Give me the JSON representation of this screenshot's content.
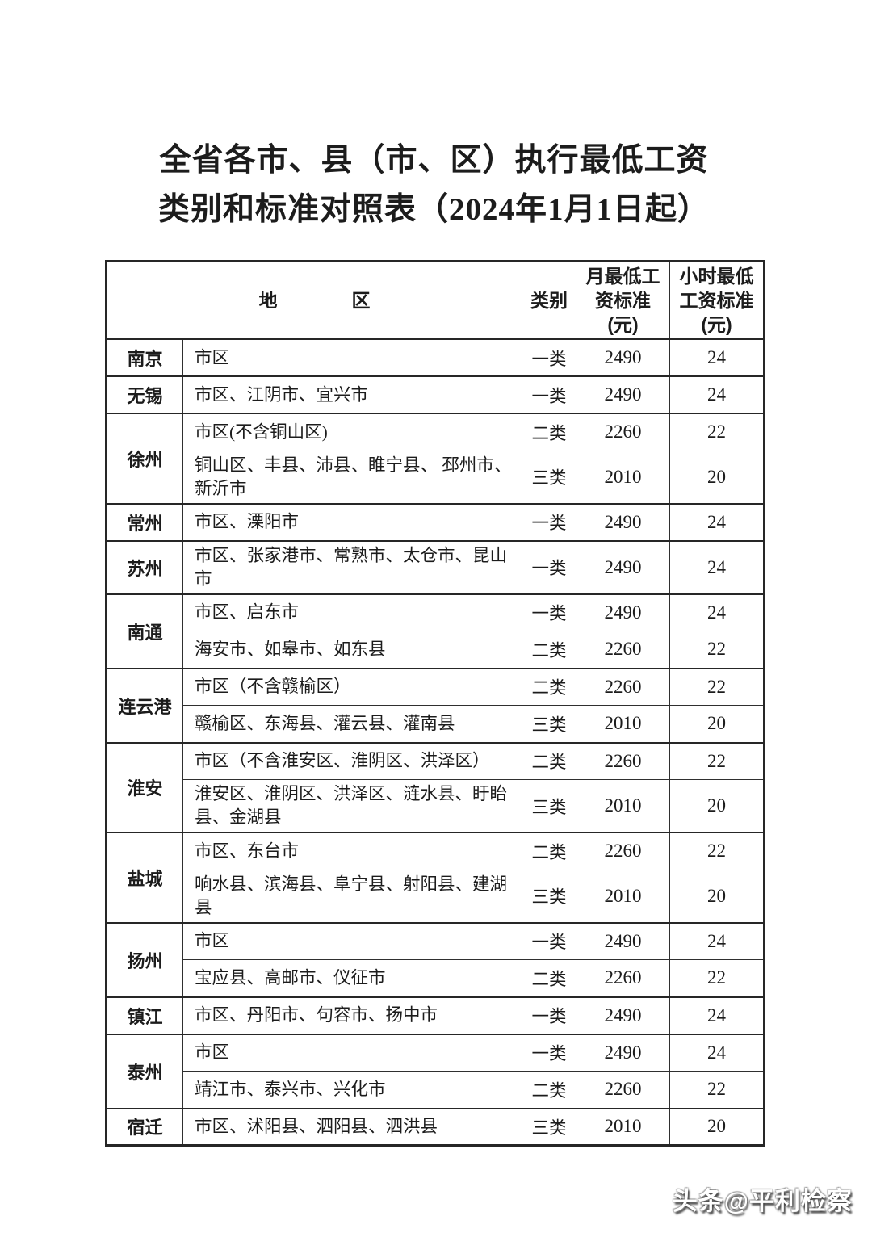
{
  "colors": {
    "background": "#ffffff",
    "text": "#1c1c1c",
    "table_border": "#2f2f2f",
    "watermark_fill": "#ffffff",
    "watermark_shadow": "#4f4f4f"
  },
  "title": {
    "line1": "全省各市、县（市、区）执行最低工资",
    "line2": "类别和标准对照表（2024年1月1日起）"
  },
  "table": {
    "headers": {
      "region": "地　　　　区",
      "category": "类别",
      "monthly": "月最低工\n资标准\n(元)",
      "hourly": "小时最低\n工资标准\n(元)"
    },
    "groups": [
      {
        "city": "南京",
        "rows": [
          {
            "region": "市区",
            "category": "一类",
            "monthly": "2490",
            "hourly": "24"
          }
        ]
      },
      {
        "city": "无锡",
        "rows": [
          {
            "region": "市区、江阴市、宜兴市",
            "category": "一类",
            "monthly": "2490",
            "hourly": "24"
          }
        ]
      },
      {
        "city": "徐州",
        "rows": [
          {
            "region": "市区(不含铜山区)",
            "category": "二类",
            "monthly": "2260",
            "hourly": "22"
          },
          {
            "region": "铜山区、丰县、沛县、睢宁县、 邳州市、新沂市",
            "category": "三类",
            "monthly": "2010",
            "hourly": "20"
          }
        ]
      },
      {
        "city": "常州",
        "rows": [
          {
            "region": "市区、溧阳市",
            "category": "一类",
            "monthly": "2490",
            "hourly": "24"
          }
        ]
      },
      {
        "city": "苏州",
        "rows": [
          {
            "region": "市区、张家港市、常熟市、太仓市、昆山市",
            "category": "一类",
            "monthly": "2490",
            "hourly": "24"
          }
        ]
      },
      {
        "city": "南通",
        "rows": [
          {
            "region": "市区、启东市",
            "category": "一类",
            "monthly": "2490",
            "hourly": "24"
          },
          {
            "region": "海安市、如皋市、如东县",
            "category": "二类",
            "monthly": "2260",
            "hourly": "22"
          }
        ]
      },
      {
        "city": "连云港",
        "rows": [
          {
            "region": "市区（不含赣榆区）",
            "category": "二类",
            "monthly": "2260",
            "hourly": "22"
          },
          {
            "region": "赣榆区、东海县、灌云县、灌南县",
            "category": "三类",
            "monthly": "2010",
            "hourly": "20"
          }
        ]
      },
      {
        "city": "淮安",
        "rows": [
          {
            "region": "市区（不含淮安区、淮阴区、洪泽区）",
            "category": "二类",
            "monthly": "2260",
            "hourly": "22"
          },
          {
            "region": "淮安区、淮阴区、洪泽区、涟水县、盱眙县、金湖县",
            "category": "三类",
            "monthly": "2010",
            "hourly": "20"
          }
        ]
      },
      {
        "city": "盐城",
        "rows": [
          {
            "region": "市区、东台市",
            "category": "二类",
            "monthly": "2260",
            "hourly": "22"
          },
          {
            "region": "响水县、滨海县、阜宁县、射阳县、建湖县",
            "category": "三类",
            "monthly": "2010",
            "hourly": "20"
          }
        ]
      },
      {
        "city": "扬州",
        "rows": [
          {
            "region": "市区",
            "category": "一类",
            "monthly": "2490",
            "hourly": "24"
          },
          {
            "region": "宝应县、高邮市、仪征市",
            "category": "二类",
            "monthly": "2260",
            "hourly": "22"
          }
        ]
      },
      {
        "city": "镇江",
        "rows": [
          {
            "region": "市区、丹阳市、句容市、扬中市",
            "category": "一类",
            "monthly": "2490",
            "hourly": "24"
          }
        ]
      },
      {
        "city": "泰州",
        "rows": [
          {
            "region": "市区",
            "category": "一类",
            "monthly": "2490",
            "hourly": "24"
          },
          {
            "region": "靖江市、泰兴市、兴化市",
            "category": "二类",
            "monthly": "2260",
            "hourly": "22"
          }
        ]
      },
      {
        "city": "宿迁",
        "rows": [
          {
            "region": "市区、沭阳县、泗阳县、泗洪县",
            "category": "三类",
            "monthly": "2010",
            "hourly": "20"
          }
        ]
      }
    ]
  },
  "watermark": {
    "text": "头条@平利检察"
  }
}
